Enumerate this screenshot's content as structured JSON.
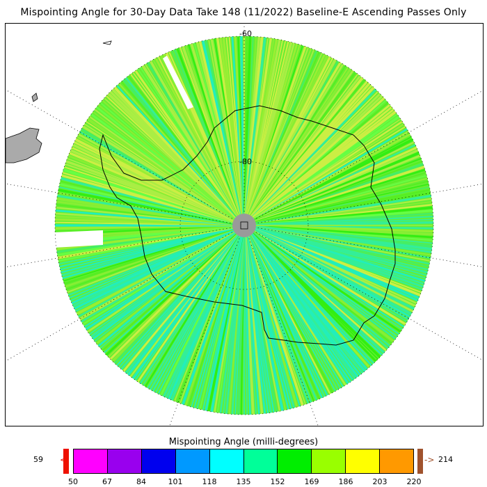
{
  "title": "Mispointing Angle for 30-Day Data Take 148 (11/2022) Baseline-E Ascending Passes Only",
  "map": {
    "lat_labels": [
      "-60",
      "-80"
    ],
    "projection": "south-polar-stereographic",
    "land_color": "#aaaaaa",
    "pole_fill": "#9a9a9a"
  },
  "colorbar": {
    "title": "Mispointing Angle (milli-degrees)",
    "min_label": "59",
    "max_label": "214",
    "under_arrow": "<",
    "over_arrow": "->",
    "ticks": [
      "50",
      "67",
      "84",
      "101",
      "118",
      "135",
      "152",
      "169",
      "186",
      "203",
      "220"
    ],
    "colors": [
      "#ff00ff",
      "#9900ee",
      "#0000ee",
      "#0099ff",
      "#00ffff",
      "#00ff99",
      "#00ee00",
      "#99ff00",
      "#ffff00",
      "#ff9900"
    ],
    "under_color": "#ee1100",
    "over_color": "#a0522d"
  }
}
